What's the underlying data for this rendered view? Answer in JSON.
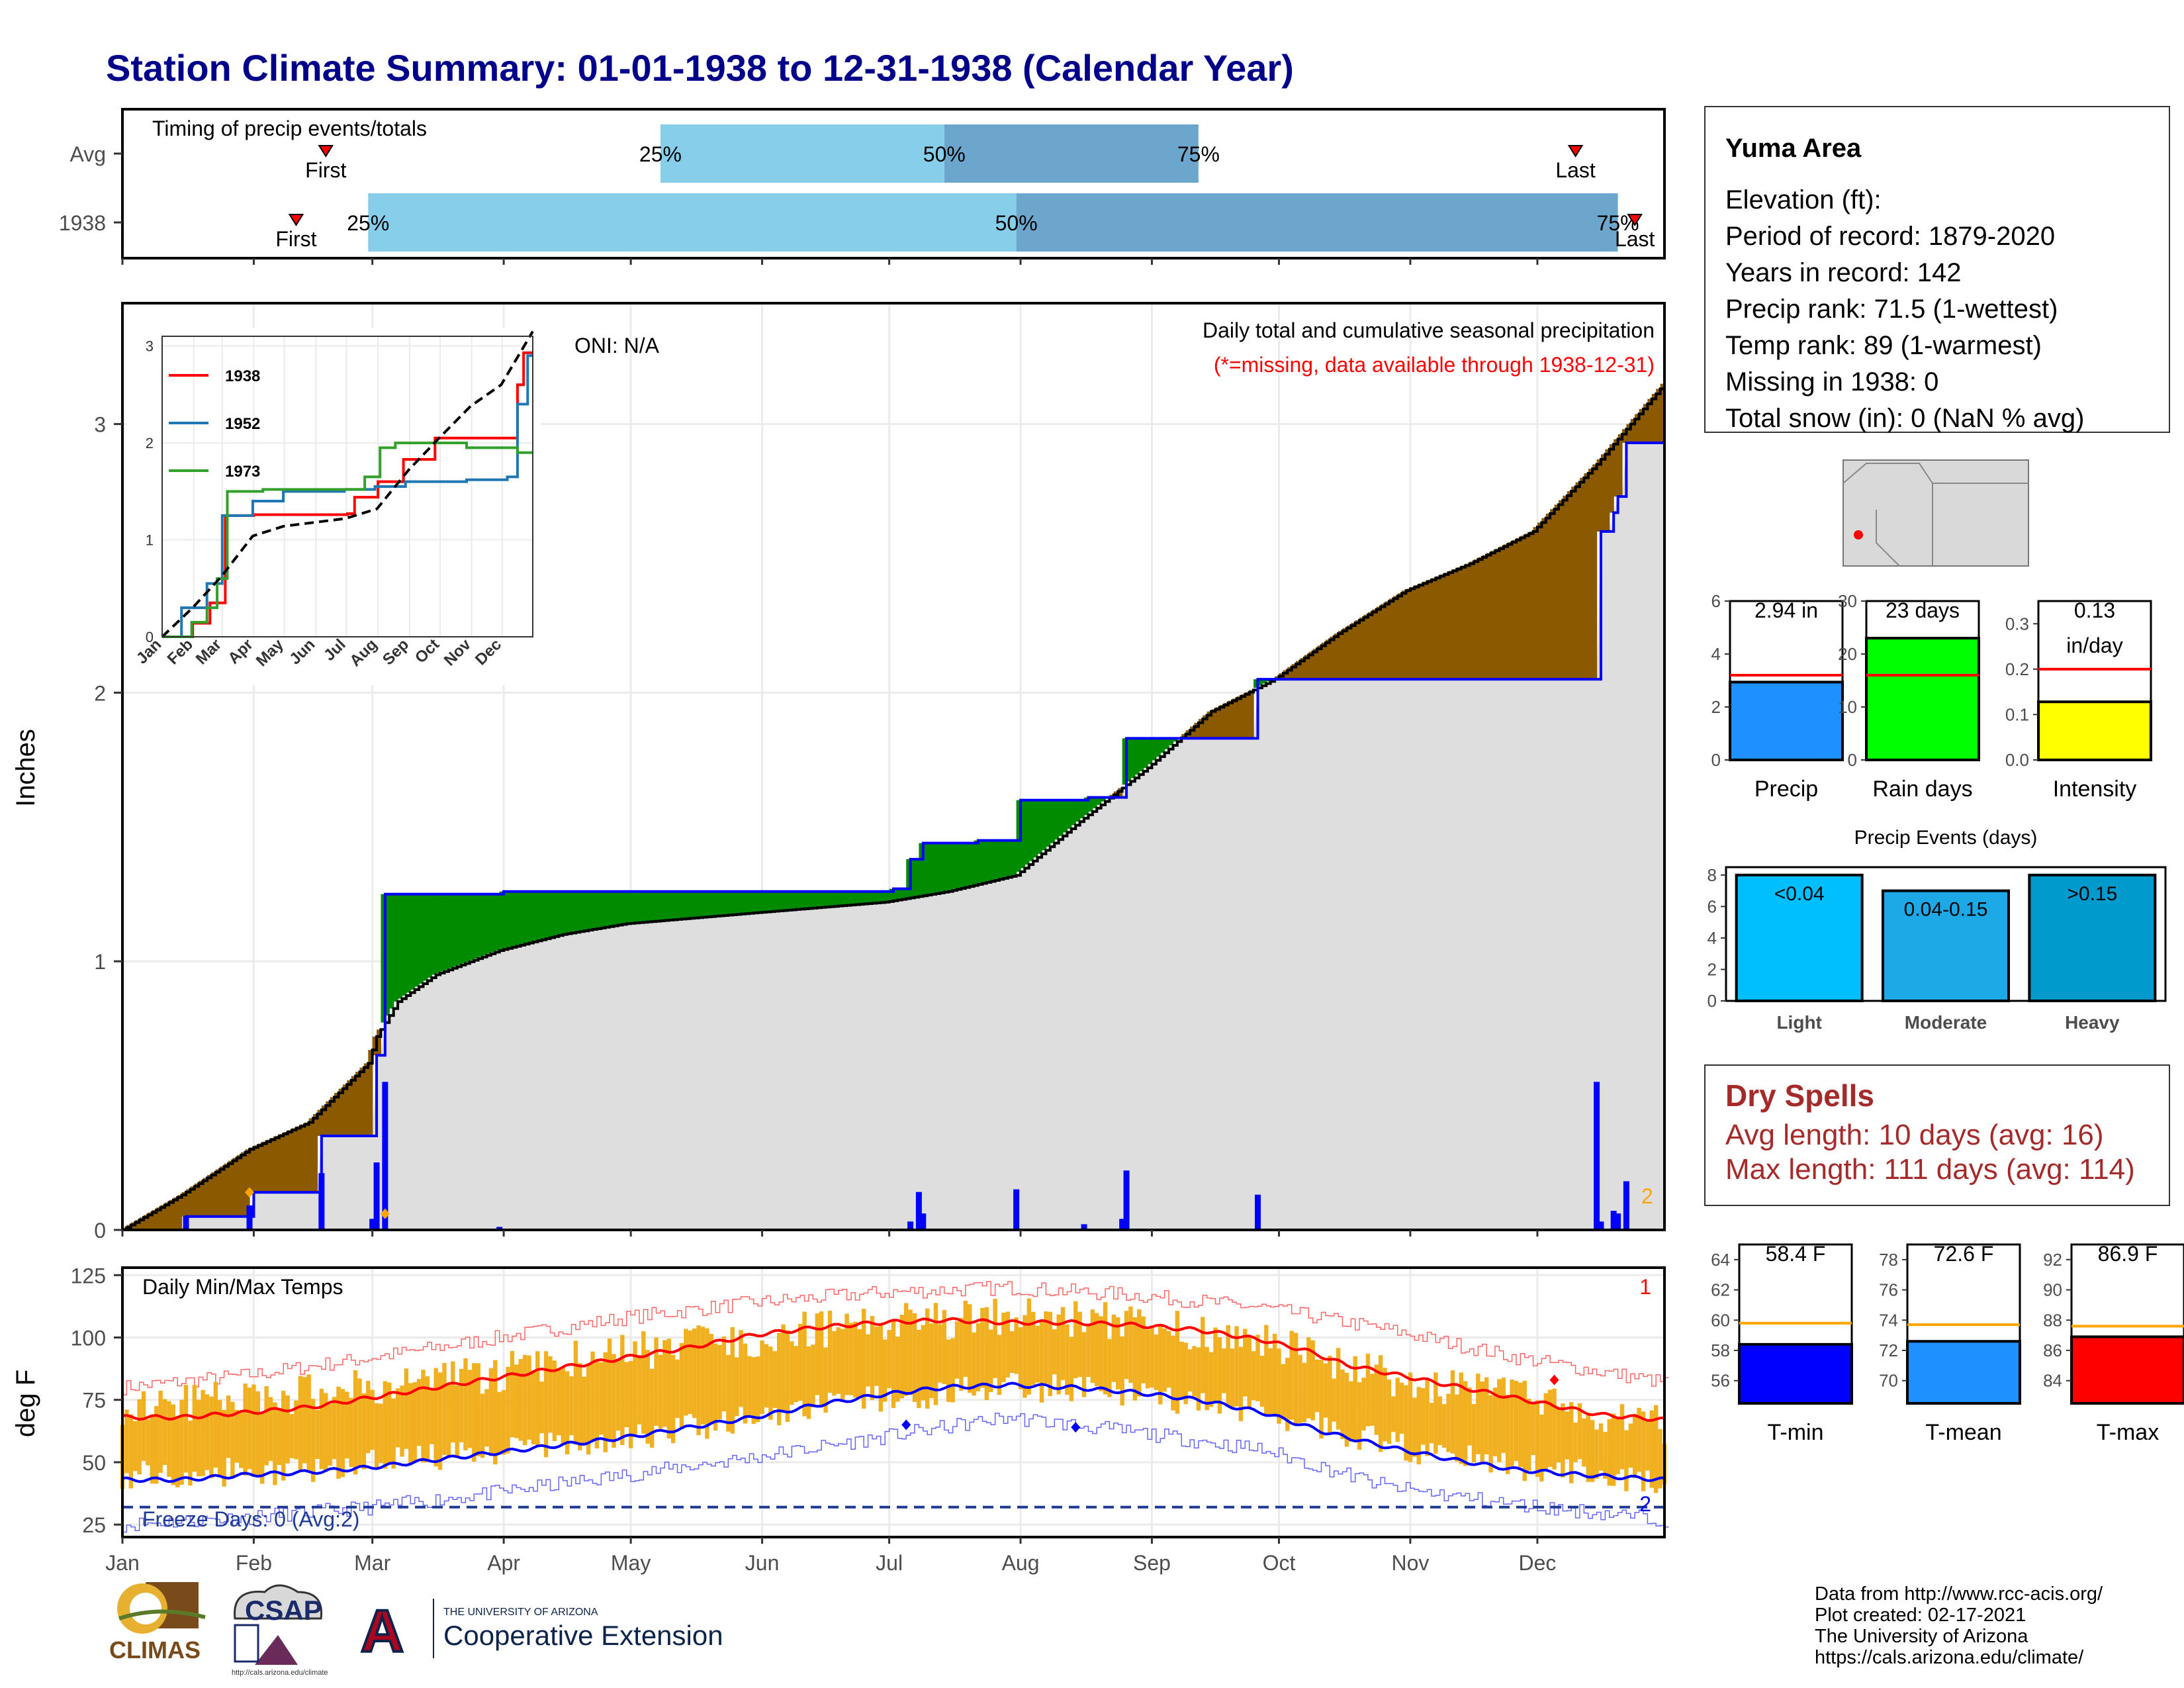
{
  "title": "Station Climate Summary: 01-01-1938 to 12-31-1938 (Calendar Year)",
  "timing_panel": {
    "title": "Timing of precip events/totals",
    "rows": [
      "Avg",
      "1938"
    ],
    "first_label": "First",
    "last_label": "Last",
    "avg": {
      "first_doy": 49,
      "q25_doy": 128,
      "q50_doy": 195,
      "q75_doy": 255,
      "last_doy": 344
    },
    "y1938": {
      "first_doy": 42,
      "q25_doy": 59,
      "q50_doy": 212,
      "q75_doy": 354,
      "last_doy": 358
    },
    "labels": {
      "q25": "25%",
      "q50": "50%",
      "q75": "75%"
    },
    "colors": {
      "light": "#87ceeb",
      "dark": "#6ca6cd",
      "marker": "#ff0000"
    }
  },
  "precip_panel": {
    "ylabel": "Inches",
    "oni": "ONI: N/A",
    "annotation": "Daily total and cumulative seasonal precipitation",
    "missing_note": "(*=missing, data available through 1938-12-31)",
    "missing_count": "2",
    "month_labels": [
      "Jan",
      "Feb",
      "Mar",
      "Apr",
      "May",
      "Jun",
      "Jul",
      "Aug",
      "Sep",
      "Oct",
      "Nov",
      "Dec"
    ]
  },
  "inset": {
    "legend": [
      "1938",
      "1952",
      "1973"
    ],
    "colors": [
      "#ff0000",
      "#1f78b4",
      "#33a02c"
    ]
  },
  "temp_panel": {
    "title": "Daily Min/Max Temps",
    "ylabel": "deg F",
    "freeze_label": "Freeze Days: 0 (Avg:2)",
    "record_high_count": "1",
    "record_low_count": "2",
    "month_labels": [
      "Jan",
      "Feb",
      "Mar",
      "Apr",
      "May",
      "Jun",
      "Jul",
      "Aug",
      "Sep",
      "Oct",
      "Nov",
      "Dec"
    ]
  },
  "station": {
    "name": "Yuma Area",
    "lines": [
      "Elevation (ft):",
      "Period of record: 1879-2020",
      "Years in record: 142",
      "Precip rank: 71.5 (1-wettest)",
      "Temp rank: 89 (1-warmest)",
      "Missing in 1938: 0",
      "Total snow (in): 0 (NaN % avg)"
    ]
  },
  "precip_summary": [
    {
      "label": "Precip",
      "value_text": "2.94 in",
      "value": 2.94,
      "avg": 3.2,
      "ylim": [
        0,
        6
      ],
      "ticks": [
        0,
        2,
        4,
        6
      ],
      "color": "#1e90ff"
    },
    {
      "label": "Rain days",
      "value_text": "23 days",
      "value": 23,
      "avg": 16,
      "ylim": [
        0,
        30
      ],
      "ticks": [
        0,
        10,
        20,
        30
      ],
      "color": "#00ff00"
    },
    {
      "label": "Intensity",
      "value_text": "0.13",
      "value_text2": "in/day",
      "value": 0.128,
      "avg": 0.2,
      "ylim": [
        0,
        0.35
      ],
      "ticks": [
        "0.0",
        "0.1",
        "0.2",
        "0.3"
      ],
      "tick_values": [
        0,
        0.1,
        0.2,
        0.3
      ],
      "color": "#ffff00"
    }
  ],
  "precip_events": {
    "title": "Precip Events (days)",
    "categories": [
      "Light",
      "Moderate",
      "Heavy"
    ],
    "bar_labels": [
      "<0.04",
      "0.04-0.15",
      ">0.15"
    ],
    "values": [
      8,
      7,
      8
    ],
    "ticks": [
      0,
      2,
      4,
      6,
      8
    ],
    "colors": [
      "#00bfff",
      "#1ca9e6",
      "#009acd"
    ]
  },
  "dry_spells": {
    "title": "Dry Spells",
    "avg_length": "Avg length: 10 days (avg: 16)",
    "max_length": "Max length: 111 days (avg: 114)"
  },
  "temp_summary": [
    {
      "label": "T-min",
      "value_text": "58.4 F",
      "value": 58.4,
      "avg": 59.8,
      "ylim": [
        54.5,
        65
      ],
      "ticks": [
        56,
        58,
        60,
        62,
        64
      ],
      "color": "#0000ff"
    },
    {
      "label": "T-mean",
      "value_text": "72.6 F",
      "value": 72.6,
      "avg": 73.7,
      "ylim": [
        68.5,
        79
      ],
      "ticks": [
        70,
        72,
        74,
        76,
        78
      ],
      "color": "#1e90ff"
    },
    {
      "label": "T-max",
      "value_text": "86.9 F",
      "value": 86.9,
      "avg": 87.6,
      "ylim": [
        82.5,
        93
      ],
      "ticks": [
        84,
        86,
        88,
        90,
        92
      ],
      "color": "#ff0000"
    }
  ],
  "credits": [
    "Data from http://www.rcc-acis.org/",
    "Plot created: 02-17-2021",
    "The University of Arizona",
    "https://cals.arizona.edu/climate/"
  ],
  "logos": {
    "climas": "CLIMAS",
    "csap": "CSAP",
    "csap_url": "http://cals.arizona.edu/climate",
    "ua_small": "THE UNIVERSITY OF ARIZONA",
    "ua_big": "Cooperative Extension",
    "ua_letter": "A"
  },
  "chart_data": [
    {
      "type": "area",
      "name": "cumulative precipitation",
      "ylim": [
        0,
        3.45
      ],
      "y_ticks": [
        0,
        1,
        2,
        3
      ],
      "series_1938_steps": [
        [
          1,
          0
        ],
        [
          16,
          0.05
        ],
        [
          31,
          0.05
        ],
        [
          32,
          0.14
        ],
        [
          47,
          0.14
        ],
        [
          48,
          0.35
        ],
        [
          60,
          0.35
        ],
        [
          61,
          0.65
        ],
        [
          62,
          0.65
        ],
        [
          63,
          1.25
        ],
        [
          90,
          1.25
        ],
        [
          91,
          1.26
        ],
        [
          182,
          1.26
        ],
        [
          183,
          1.27
        ],
        [
          186,
          1.27
        ],
        [
          187,
          1.38
        ],
        [
          189,
          1.38
        ],
        [
          190,
          1.44
        ],
        [
          202,
          1.44
        ],
        [
          203,
          1.45
        ],
        [
          212,
          1.45
        ],
        [
          213,
          1.6
        ],
        [
          228,
          1.6
        ],
        [
          229,
          1.61
        ],
        [
          237,
          1.61
        ],
        [
          238,
          1.83
        ],
        [
          268,
          1.83
        ],
        [
          269,
          2.05
        ],
        [
          349,
          2.05
        ],
        [
          350,
          2.6
        ],
        [
          352,
          2.6
        ],
        [
          353,
          2.67
        ],
        [
          354,
          2.73
        ],
        [
          356,
          2.93
        ],
        [
          365,
          2.93
        ]
      ],
      "avg_cumulative": [
        [
          1,
          0
        ],
        [
          15,
          0.13
        ],
        [
          31,
          0.3
        ],
        [
          45,
          0.4
        ],
        [
          59,
          0.62
        ],
        [
          61,
          0.72
        ],
        [
          66,
          0.85
        ],
        [
          75,
          0.95
        ],
        [
          90,
          1.04
        ],
        [
          105,
          1.1
        ],
        [
          120,
          1.14
        ],
        [
          150,
          1.18
        ],
        [
          181,
          1.22
        ],
        [
          196,
          1.26
        ],
        [
          212,
          1.32
        ],
        [
          227,
          1.52
        ],
        [
          243,
          1.72
        ],
        [
          258,
          1.93
        ],
        [
          273,
          2.05
        ],
        [
          288,
          2.22
        ],
        [
          304,
          2.38
        ],
        [
          319,
          2.48
        ],
        [
          334,
          2.6
        ],
        [
          349,
          2.85
        ],
        [
          365,
          3.15
        ]
      ],
      "daily_precip": [
        [
          16,
          0.05
        ],
        [
          31,
          0.09
        ],
        [
          48,
          0.21
        ],
        [
          60,
          0.04
        ],
        [
          61,
          0.25
        ],
        [
          63,
          0.55
        ],
        [
          90,
          0.01
        ],
        [
          187,
          0.03
        ],
        [
          189,
          0.14
        ],
        [
          190,
          0.06
        ],
        [
          212,
          0.15
        ],
        [
          228,
          0.02
        ],
        [
          237,
          0.04
        ],
        [
          238,
          0.22
        ],
        [
          269,
          0.13
        ],
        [
          349,
          0.55
        ],
        [
          350,
          0.03
        ],
        [
          353,
          0.07
        ],
        [
          354,
          0.06
        ],
        [
          356,
          0.18
        ]
      ]
    },
    {
      "type": "line",
      "name": "inset cumulative comparison",
      "ylim": [
        0,
        3.1
      ],
      "y_ticks": [
        0,
        1,
        2,
        3
      ],
      "series": [
        {
          "name": "1938",
          "points": [
            [
              1,
              0
            ],
            [
              31,
              0.14
            ],
            [
              48,
              0.35
            ],
            [
              63,
              1.25
            ],
            [
              91,
              1.26
            ],
            [
              183,
              1.27
            ],
            [
              190,
              1.44
            ],
            [
              213,
              1.6
            ],
            [
              238,
              1.83
            ],
            [
              269,
              2.05
            ],
            [
              350,
              2.6
            ],
            [
              356,
              2.93
            ],
            [
              365,
              2.93
            ]
          ]
        },
        {
          "name": "1952",
          "points": [
            [
              1,
              0
            ],
            [
              20,
              0.3
            ],
            [
              45,
              0.55
            ],
            [
              60,
              1.25
            ],
            [
              90,
              1.4
            ],
            [
              120,
              1.5
            ],
            [
              180,
              1.52
            ],
            [
              210,
              1.55
            ],
            [
              240,
              1.6
            ],
            [
              300,
              1.62
            ],
            [
              340,
              1.65
            ],
            [
              350,
              2.4
            ],
            [
              360,
              2.9
            ],
            [
              365,
              2.9
            ]
          ]
        },
        {
          "name": "1973",
          "points": [
            [
              1,
              0
            ],
            [
              30,
              0.15
            ],
            [
              45,
              0.3
            ],
            [
              55,
              0.6
            ],
            [
              65,
              1.5
            ],
            [
              100,
              1.52
            ],
            [
              200,
              1.65
            ],
            [
              215,
              1.95
            ],
            [
              230,
              2.0
            ],
            [
              300,
              1.95
            ],
            [
              350,
              1.9
            ],
            [
              365,
              1.9
            ]
          ]
        },
        {
          "name": "avg",
          "points": [
            [
              1,
              0
            ],
            [
              31,
              0.3
            ],
            [
              59,
              0.62
            ],
            [
              90,
              1.04
            ],
            [
              120,
              1.14
            ],
            [
              181,
              1.22
            ],
            [
              212,
              1.32
            ],
            [
              243,
              1.72
            ],
            [
              273,
              2.05
            ],
            [
              304,
              2.38
            ],
            [
              334,
              2.6
            ],
            [
              365,
              3.15
            ]
          ]
        }
      ]
    },
    {
      "type": "line",
      "name": "daily temperatures",
      "ylim": [
        20,
        128
      ],
      "y_ticks": [
        25,
        50,
        75,
        100,
        125
      ],
      "avg_max": [
        [
          1,
          68
        ],
        [
          15,
          68
        ],
        [
          31,
          70
        ],
        [
          45,
          72
        ],
        [
          60,
          76
        ],
        [
          75,
          80
        ],
        [
          90,
          84
        ],
        [
          105,
          88
        ],
        [
          120,
          92
        ],
        [
          135,
          96
        ],
        [
          150,
          101
        ],
        [
          165,
          104
        ],
        [
          180,
          106
        ],
        [
          195,
          107
        ],
        [
          210,
          106
        ],
        [
          225,
          106
        ],
        [
          240,
          105
        ],
        [
          255,
          103
        ],
        [
          270,
          99
        ],
        [
          280,
          95
        ],
        [
          290,
          89
        ],
        [
          305,
          84
        ],
        [
          320,
          79
        ],
        [
          335,
          74
        ],
        [
          350,
          69
        ],
        [
          365,
          67
        ]
      ],
      "avg_min": [
        [
          1,
          43
        ],
        [
          15,
          43
        ],
        [
          31,
          45
        ],
        [
          45,
          46
        ],
        [
          60,
          48
        ],
        [
          75,
          51
        ],
        [
          90,
          54
        ],
        [
          105,
          57
        ],
        [
          120,
          60
        ],
        [
          135,
          64
        ],
        [
          150,
          68
        ],
        [
          165,
          73
        ],
        [
          180,
          77
        ],
        [
          195,
          80
        ],
        [
          210,
          81
        ],
        [
          225,
          80
        ],
        [
          240,
          78
        ],
        [
          255,
          75
        ],
        [
          270,
          70
        ],
        [
          285,
          62
        ],
        [
          300,
          56
        ],
        [
          315,
          51
        ],
        [
          330,
          47
        ],
        [
          345,
          45
        ],
        [
          365,
          43
        ]
      ],
      "record_max": [
        [
          1,
          80
        ],
        [
          31,
          85
        ],
        [
          60,
          92
        ],
        [
          90,
          100
        ],
        [
          120,
          108
        ],
        [
          150,
          114
        ],
        [
          180,
          118
        ],
        [
          210,
          120
        ],
        [
          240,
          117
        ],
        [
          270,
          112
        ],
        [
          300,
          103
        ],
        [
          330,
          92
        ],
        [
          365,
          82
        ]
      ],
      "record_min": [
        [
          1,
          25
        ],
        [
          31,
          28
        ],
        [
          60,
          32
        ],
        [
          90,
          38
        ],
        [
          120,
          45
        ],
        [
          150,
          52
        ],
        [
          180,
          60
        ],
        [
          210,
          68
        ],
        [
          240,
          62
        ],
        [
          270,
          55
        ],
        [
          300,
          40
        ],
        [
          330,
          33
        ],
        [
          365,
          27
        ]
      ],
      "freeze_line": 32,
      "record_high_marks": [
        [
          339,
          83
        ]
      ],
      "record_low_marks": [
        [
          186,
          65
        ],
        [
          226,
          64
        ]
      ],
      "yellow_bar_high": [
        [
          1,
          73
        ],
        [
          31,
          75
        ],
        [
          60,
          80
        ],
        [
          90,
          86
        ],
        [
          120,
          94
        ],
        [
          150,
          100
        ],
        [
          180,
          106
        ],
        [
          210,
          108
        ],
        [
          240,
          106
        ],
        [
          270,
          99
        ],
        [
          300,
          84
        ],
        [
          330,
          76
        ],
        [
          365,
          65
        ]
      ],
      "yellow_bar_low": [
        [
          1,
          45
        ],
        [
          31,
          46
        ],
        [
          60,
          49
        ],
        [
          90,
          54
        ],
        [
          120,
          60
        ],
        [
          150,
          68
        ],
        [
          180,
          76
        ],
        [
          210,
          80
        ],
        [
          240,
          78
        ],
        [
          270,
          70
        ],
        [
          300,
          57
        ],
        [
          330,
          48
        ],
        [
          365,
          43
        ]
      ]
    }
  ]
}
